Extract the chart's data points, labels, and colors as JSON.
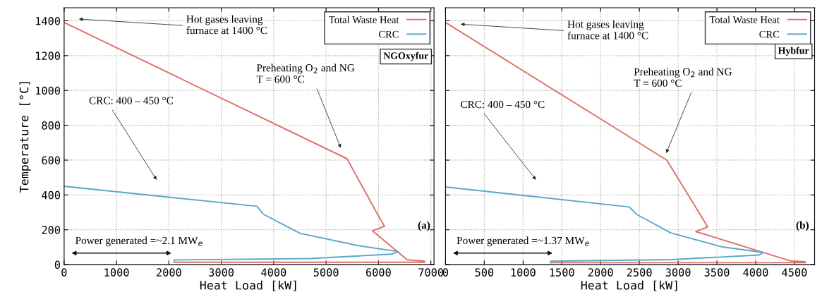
{
  "chart_data": [
    {
      "type": "line",
      "xlabel": "Heat Load [kW]",
      "ylabel": "Temperature [°C]",
      "xlim": [
        0,
        7060
      ],
      "ylim": [
        0,
        1475
      ],
      "xticks": [
        0,
        1000,
        2000,
        3000,
        4000,
        5000,
        6000,
        7000
      ],
      "yticks": [
        0,
        200,
        400,
        600,
        800,
        1000,
        1200,
        1400
      ],
      "grid": true,
      "legend": "top right",
      "line_style": "solid",
      "marker": "none",
      "series": [
        {
          "name": "Total Waste Heat",
          "color": "#e07068",
          "x": [
            0,
            5400,
            5980,
            6115,
            5885,
            6550,
            6880,
            6880,
            2100
          ],
          "values": [
            1390,
            608,
            290,
            220,
            194,
            28,
            20,
            14,
            14
          ]
        },
        {
          "name": "CRC",
          "color": "#5ba6cc",
          "x": [
            0,
            3680,
            3800,
            4500,
            5600,
            6380,
            6250,
            5000,
            4700,
            2100,
            2100
          ],
          "values": [
            450,
            335,
            290,
            180,
            110,
            75,
            60,
            40,
            35,
            27,
            20
          ]
        }
      ],
      "annotations": [
        "Hot gases leaving\nfurnace at 1400 °C",
        "Preheating O$_{2}$ and NG\nT = 600 °C",
        "CRC: 400 – 450 °C",
        "Power generated =~2.1 MW$_{e}$",
        "(a)",
        "NGOxyfur"
      ]
    },
    {
      "type": "line",
      "xlabel": "Heat Load [kW]",
      "xlim": [
        0,
        4760
      ],
      "ylim": [
        0,
        1475
      ],
      "xticks": [
        0,
        500,
        1000,
        1500,
        2000,
        2500,
        3000,
        3500,
        4000,
        4500
      ],
      "yticks": [
        0,
        200,
        400,
        600,
        800,
        1000,
        1200,
        1400
      ],
      "tick_labels": "x",
      "grid": true,
      "legend": "top right",
      "line_style": "solid",
      "marker": "none",
      "series": [
        {
          "name": "Total Waste Heat",
          "color": "#e07068",
          "x": [
            0,
            2854,
            3381,
            3228,
            4452,
            4640,
            4640,
            1357
          ],
          "values": [
            1390,
            600,
            217,
            190,
            21,
            17,
            11,
            11
          ]
        },
        {
          "name": "CRC",
          "color": "#5ba6cc",
          "x": [
            0,
            2371,
            2463,
            2905,
            3568,
            4095,
            4044,
            2922,
            1357,
            1357
          ],
          "values": [
            446,
            331,
            289,
            182,
            102,
            70,
            55,
            29,
            20,
            11
          ]
        }
      ],
      "annotations": [
        "Hot gases leaving\nfurnace at 1400 °C",
        "Preheating O$_{2}$ and NG\nT = 600 °C",
        "CRC: 400 – 450 °C",
        "Power generated =~1.37 MW$_{e}$",
        "(b)",
        "Hybfur"
      ]
    }
  ]
}
